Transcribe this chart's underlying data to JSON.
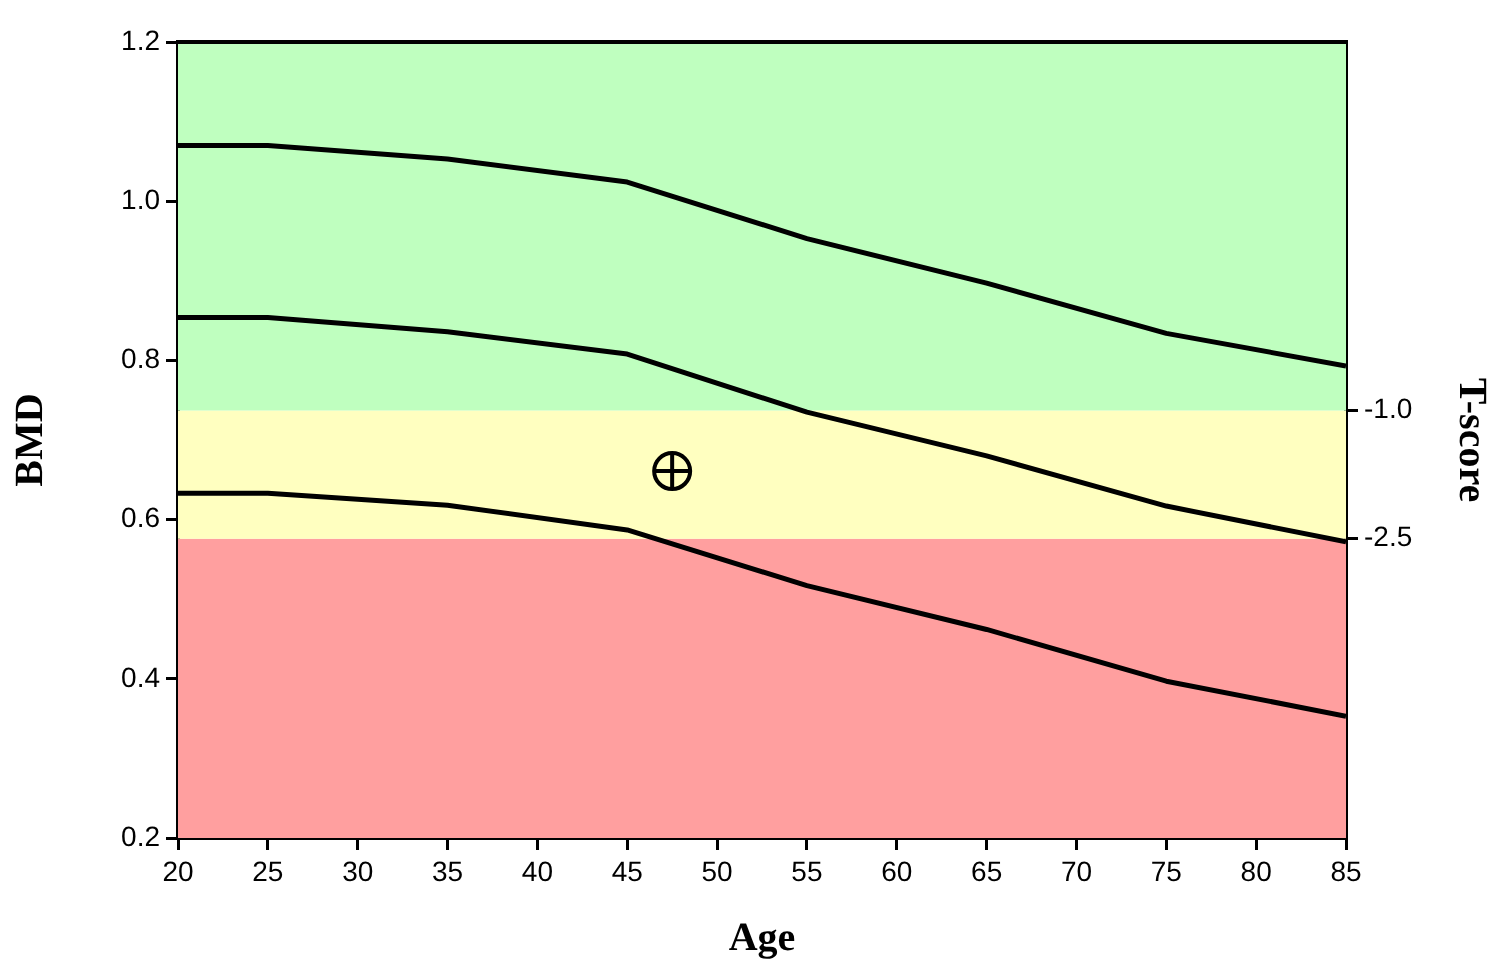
{
  "chart_data": {
    "type": "line",
    "xlabel": "Age",
    "ylabel": "BMD",
    "y2label": "T-score",
    "xlim": [
      20,
      85
    ],
    "xticks": [
      20,
      25,
      30,
      35,
      40,
      45,
      50,
      55,
      60,
      65,
      70,
      75,
      80,
      85
    ],
    "ylim": [
      0.2,
      1.2
    ],
    "yticks": [
      0.2,
      0.4,
      0.6,
      0.8,
      {
        "value": 1,
        "label": "1.0"
      },
      1.2
    ],
    "y2lim": [
      -6.0,
      3.3
    ],
    "y2ticks": [
      {
        "value": -1,
        "label": "-1.0"
      },
      -2.5
    ],
    "grid": false,
    "legend": false,
    "line_style": "solid",
    "bands": [
      {
        "axis": "y",
        "from": 0.2,
        "to": 0.576,
        "color": "#ff9f9f"
      },
      {
        "axis": "y",
        "from": 0.576,
        "to": 0.737,
        "color": "#ffffc0"
      },
      {
        "axis": "y",
        "from": 0.737,
        "to": 1.2,
        "color": "#bfffbf"
      }
    ],
    "series": [
      {
        "color": "#000000",
        "marker": "none",
        "x": [
          20,
          25,
          35,
          45,
          55,
          65,
          75,
          85
        ],
        "values": [
          1.07,
          1.07,
          1.053,
          1.024,
          0.953,
          0.897,
          0.834,
          0.793
        ]
      },
      {
        "color": "#000000",
        "marker": "none",
        "x": [
          20,
          25,
          35,
          45,
          55,
          65,
          75,
          85
        ],
        "values": [
          0.854,
          0.854,
          0.836,
          0.808,
          0.735,
          0.68,
          0.617,
          0.572
        ]
      },
      {
        "color": "#000000",
        "marker": "none",
        "x": [
          20,
          25,
          35,
          45,
          55,
          65,
          75,
          85
        ],
        "values": [
          0.633,
          0.633,
          0.618,
          0.587,
          0.517,
          0.462,
          0.397,
          0.353
        ]
      },
      {
        "type": "scatter",
        "color": "#000000",
        "marker": "circle",
        "x": [
          47.5
        ],
        "values": [
          0.661
        ]
      }
    ]
  }
}
